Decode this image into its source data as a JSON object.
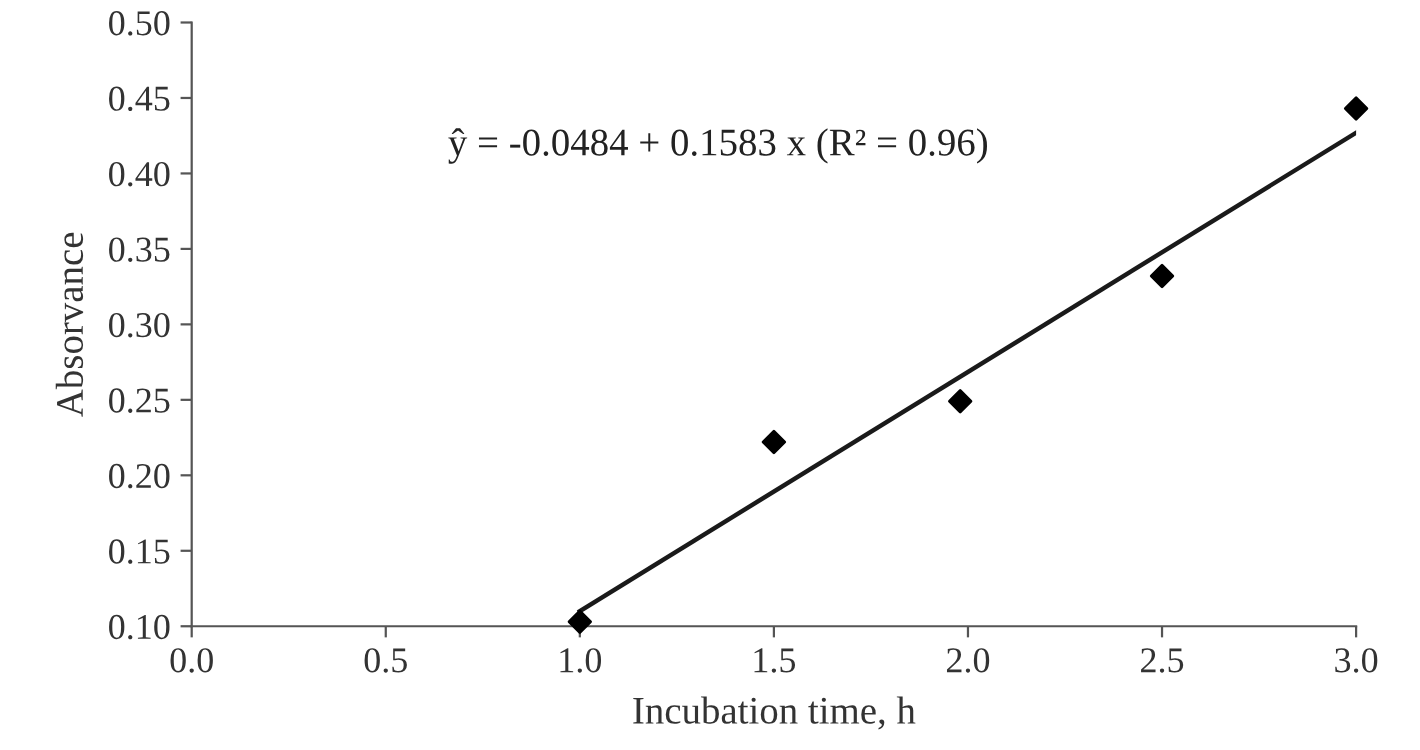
{
  "chart_data": {
    "type": "scatter",
    "xlabel": "Incubation time, h",
    "ylabel": "Absorvance",
    "annotations": [
      "ŷ = -0.0484 + 0.1583 x (R² = 0.96)"
    ],
    "series": [
      {
        "color": "#000000",
        "marker": "diamond",
        "x": [
          1.0,
          1.5,
          1.98,
          2.5,
          3.0
        ],
        "values": [
          0.103,
          0.222,
          0.249,
          0.332,
          0.443
        ]
      },
      {
        "type": "line",
        "color": "#1a1a1a",
        "line_style": "solid",
        "x": [
          1.0,
          3.0
        ],
        "values": [
          0.11,
          0.427
        ]
      }
    ],
    "xlim": [
      0,
      3
    ],
    "ylim": [
      0.1,
      0.5
    ],
    "xticks": [
      {
        "value": 0,
        "label": "0.0"
      },
      0.5,
      {
        "value": 1,
        "label": "1.0"
      },
      1.5,
      {
        "value": 2,
        "label": "2.0"
      },
      2.5,
      {
        "value": 3,
        "label": "3.0"
      }
    ],
    "yticks": [
      {
        "value": 0.1,
        "label": "0.10"
      },
      0.15,
      {
        "value": 0.2,
        "label": "0.20"
      },
      0.25,
      {
        "value": 0.3,
        "label": "0.30"
      },
      0.35,
      {
        "value": 0.4,
        "label": "0.40"
      },
      0.45,
      {
        "value": 0.5,
        "label": "0.50"
      }
    ],
    "grid": false,
    "legend": false
  }
}
